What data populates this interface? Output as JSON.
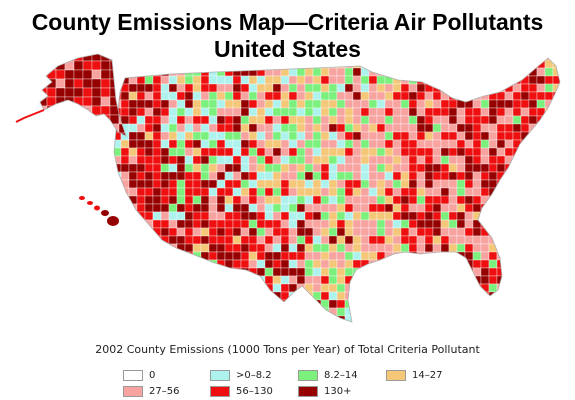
{
  "title": {
    "line1": "County Emissions Map—Criteria Air Pollutants",
    "line2": "United States"
  },
  "legend": {
    "caption": "2002 County Emissions (1000 Tons per Year) of Total Criteria Pollutant",
    "items": [
      {
        "label": "0",
        "color": "#ffffff"
      },
      {
        "label": ">0–8.2",
        "color": "#aef2ee"
      },
      {
        "label": "8.2–14",
        "color": "#7cf07c"
      },
      {
        "label": "14–27",
        "color": "#f5c778"
      },
      {
        "label": "27–56",
        "color": "#f7a3a0"
      },
      {
        "label": "56–130",
        "color": "#ee1010"
      },
      {
        "label": "130+",
        "color": "#950000"
      }
    ]
  }
}
